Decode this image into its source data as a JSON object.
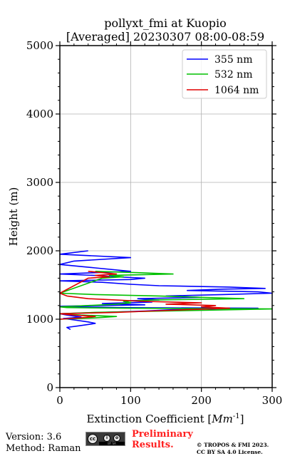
{
  "chart_data": {
    "type": "line",
    "title": "pollyxt_fmi at Kuopio",
    "subtitle": "[Averaged] 20230307 08:00-08:59",
    "xlabel_prefix": "Extinction Coefficient [",
    "xlabel_unit": "Mm",
    "xlabel_exp": "-1",
    "xlabel_suffix": "]",
    "ylabel": "Height (m)",
    "xlim": [
      0,
      300
    ],
    "ylim": [
      0,
      5000
    ],
    "xticks": [
      0,
      100,
      200,
      300
    ],
    "yticks": [
      0,
      1000,
      2000,
      3000,
      4000,
      5000
    ],
    "tick_labels_x": [
      "0",
      "100",
      "200",
      "300"
    ],
    "tick_labels_y": [
      "0",
      "1000",
      "2000",
      "3000",
      "4000",
      "5000"
    ],
    "grid": true,
    "legend_position": "top-right",
    "series": [
      {
        "name": "355 nm",
        "color": "#0000ff",
        "points": [
          [
            15,
            850
          ],
          [
            10,
            880
          ],
          [
            25,
            900
          ],
          [
            45,
            930
          ],
          [
            50,
            940
          ],
          [
            40,
            960
          ],
          [
            20,
            990
          ],
          [
            5,
            1010
          ],
          [
            30,
            1030
          ],
          [
            10,
            1060
          ],
          [
            0,
            1080
          ],
          [
            60,
            1100
          ],
          [
            120,
            1120
          ],
          [
            160,
            1140
          ],
          [
            220,
            1150
          ],
          [
            280,
            1160
          ],
          [
            80,
            1170
          ],
          [
            20,
            1180
          ],
          [
            0,
            1190
          ],
          [
            120,
            1210
          ],
          [
            60,
            1230
          ],
          [
            130,
            1250
          ],
          [
            100,
            1270
          ],
          [
            140,
            1280
          ],
          [
            110,
            1300
          ],
          [
            200,
            1320
          ],
          [
            150,
            1340
          ],
          [
            230,
            1360
          ],
          [
            300,
            1380
          ],
          [
            280,
            1400
          ],
          [
            180,
            1420
          ],
          [
            230,
            1440
          ],
          [
            290,
            1450
          ],
          [
            240,
            1470
          ],
          [
            140,
            1490
          ],
          [
            100,
            1510
          ],
          [
            60,
            1540
          ],
          [
            0,
            1560
          ],
          [
            100,
            1580
          ],
          [
            120,
            1600
          ],
          [
            80,
            1620
          ],
          [
            50,
            1640
          ],
          [
            0,
            1660
          ],
          [
            100,
            1700
          ],
          [
            50,
            1750
          ],
          [
            0,
            1800
          ],
          [
            20,
            1850
          ],
          [
            100,
            1900
          ],
          [
            0,
            1950
          ],
          [
            40,
            2000
          ]
        ]
      },
      {
        "name": "532 nm",
        "color": "#00c000",
        "points": [
          [
            0,
            1000
          ],
          [
            50,
            1020
          ],
          [
            80,
            1040
          ],
          [
            30,
            1060
          ],
          [
            0,
            1080
          ],
          [
            50,
            1100
          ],
          [
            150,
            1120
          ],
          [
            250,
            1140
          ],
          [
            300,
            1150
          ],
          [
            100,
            1160
          ],
          [
            10,
            1170
          ],
          [
            0,
            1180
          ],
          [
            40,
            1200
          ],
          [
            80,
            1220
          ],
          [
            100,
            1240
          ],
          [
            90,
            1260
          ],
          [
            130,
            1280
          ],
          [
            260,
            1300
          ],
          [
            200,
            1320
          ],
          [
            140,
            1340
          ],
          [
            50,
            1360
          ],
          [
            0,
            1380
          ],
          [
            60,
            1600
          ],
          [
            90,
            1620
          ],
          [
            70,
            1640
          ],
          [
            160,
            1660
          ],
          [
            110,
            1680
          ],
          [
            50,
            1700
          ]
        ]
      },
      {
        "name": "1064 nm",
        "color": "#e00000",
        "points": [
          [
            0,
            1000
          ],
          [
            30,
            1020
          ],
          [
            50,
            1040
          ],
          [
            20,
            1060
          ],
          [
            0,
            1080
          ],
          [
            80,
            1100
          ],
          [
            130,
            1120
          ],
          [
            180,
            1140
          ],
          [
            240,
            1160
          ],
          [
            200,
            1180
          ],
          [
            220,
            1200
          ],
          [
            150,
            1220
          ],
          [
            200,
            1240
          ],
          [
            120,
            1260
          ],
          [
            80,
            1280
          ],
          [
            40,
            1300
          ],
          [
            10,
            1340
          ],
          [
            0,
            1380
          ],
          [
            40,
            1600
          ],
          [
            70,
            1620
          ],
          [
            50,
            1640
          ],
          [
            80,
            1660
          ],
          [
            60,
            1680
          ],
          [
            40,
            1700
          ]
        ]
      }
    ]
  },
  "footer": {
    "version": "Version: 3.6",
    "method": "Method: Raman",
    "cc_text": "cc",
    "cc_by_sa": "BY   SA",
    "prelim_line1": "Preliminary",
    "prelim_line2": "Results.",
    "copyright_line1": "© TROPOS & FMI 2023.",
    "copyright_line2": "CC BY SA 4.0 License."
  }
}
